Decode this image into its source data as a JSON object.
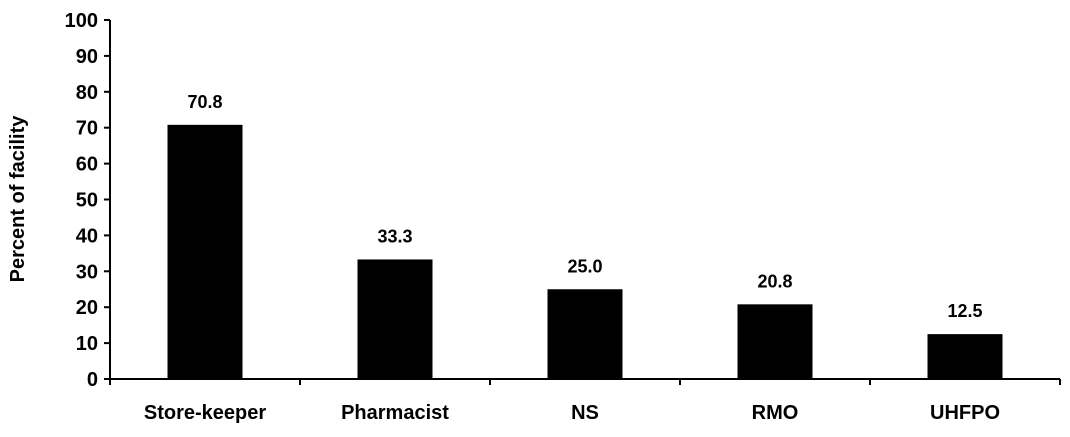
{
  "chart_data": {
    "type": "bar",
    "categories": [
      "Store-keeper",
      "Pharmacist",
      "NS",
      "RMO",
      "UHFPO"
    ],
    "values": [
      70.8,
      33.3,
      25.0,
      20.8,
      12.5
    ],
    "data_labels": [
      "70.8",
      "33.3",
      "25.0",
      "20.8",
      "12.5"
    ],
    "title": "",
    "xlabel": "",
    "ylabel": "Percent of facility",
    "ylim": [
      0,
      100
    ],
    "yticks": [
      0,
      10,
      20,
      30,
      40,
      50,
      60,
      70,
      80,
      90,
      100
    ],
    "grid": false,
    "legend": "none",
    "bar_color": "#000000"
  }
}
